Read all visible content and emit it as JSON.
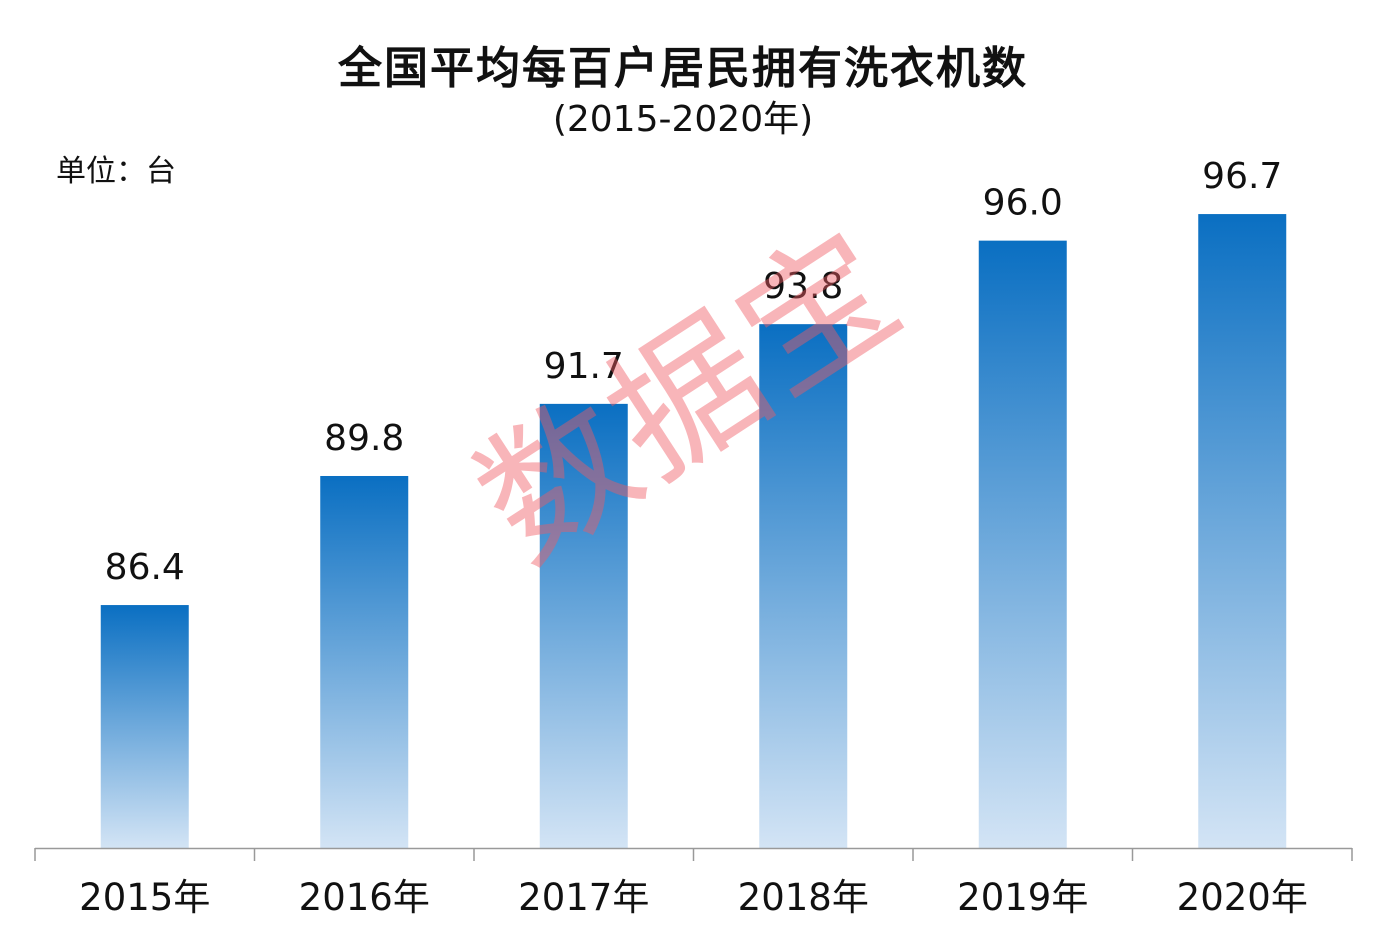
{
  "chart_data": {
    "type": "bar",
    "title": "全国平均每百户居民拥有洗衣机数",
    "subtitle": "(2015-2020年)",
    "unit_label": "单位：台",
    "categories": [
      "2015年",
      "2016年",
      "2017年",
      "2018年",
      "2019年",
      "2020年"
    ],
    "values": [
      86.4,
      89.8,
      91.7,
      93.8,
      96.0,
      96.7
    ],
    "data_labels": [
      "86.4",
      "89.8",
      "91.7",
      "93.8",
      "96.0",
      "96.7"
    ],
    "xlabel": "",
    "ylabel": "",
    "ylim": [
      80,
      100
    ],
    "grid": false,
    "colors": {
      "bar_top": "#0a6fc2",
      "bar_bottom": "#d3e4f5",
      "axis": "#999999"
    }
  },
  "watermark": "数据宝"
}
